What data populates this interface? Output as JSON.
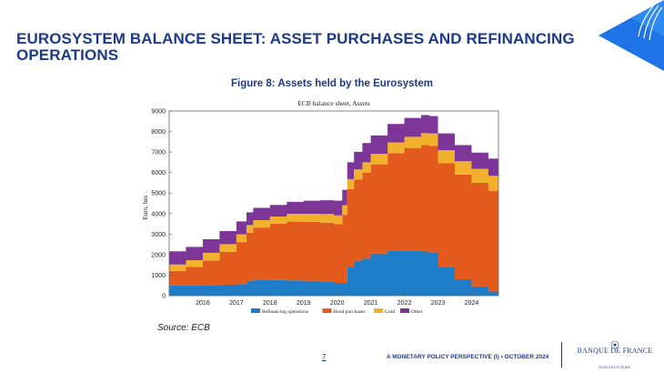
{
  "slide": {
    "title": "EUROSYSTEM BALANCE SHEET: ASSET PURCHASES AND REFINANCING OPERATIONS",
    "figure_title": "Figure 8: Assets held by the Eurosystem",
    "source": "Source: ECB",
    "page_number": "7",
    "footer_text": "A MONETARY POLICY PERSPECTIVE (I) • OCTOBER 2024",
    "logo_name": "BANQUE DE FRANCE",
    "logo_sub": "EUROSYSTÈME",
    "colors": {
      "brand_blue": "#1d3a8a",
      "corner_blue": "#1e73e6"
    }
  },
  "chart_data": {
    "type": "area",
    "stacked": true,
    "title": "ECB balance sheet, Assets",
    "xlabel": "",
    "ylabel": "Euro, bns",
    "ylim": [
      0,
      9000
    ],
    "yticks": [
      0,
      1000,
      2000,
      3000,
      4000,
      5000,
      6000,
      7000,
      8000,
      9000
    ],
    "xlim": [
      2015.0,
      2024.8
    ],
    "xticks": [
      2016,
      2017,
      2018,
      2019,
      2020,
      2021,
      2022,
      2023,
      2024
    ],
    "grid": false,
    "legend_position": "bottom",
    "x": [
      2015.0,
      2015.5,
      2016.0,
      2016.5,
      2017.0,
      2017.3,
      2017.5,
      2018.0,
      2018.5,
      2019.0,
      2019.5,
      2019.9,
      2020.15,
      2020.3,
      2020.5,
      2020.75,
      2021.0,
      2021.5,
      2022.0,
      2022.5,
      2022.75,
      2023.0,
      2023.5,
      2024.0,
      2024.5,
      2024.8
    ],
    "series": [
      {
        "name": "Refinancing operations",
        "color": "#1e7dc8",
        "values": [
          500,
          500,
          520,
          530,
          560,
          720,
          770,
          760,
          740,
          720,
          700,
          620,
          620,
          1400,
          1700,
          1800,
          2050,
          2200,
          2200,
          2150,
          2100,
          1400,
          800,
          450,
          200,
          100
        ]
      },
      {
        "name": "Bond purchases",
        "color": "#e35a1d",
        "values": [
          700,
          900,
          1200,
          1600,
          2050,
          2350,
          2550,
          2750,
          2870,
          2870,
          2860,
          2860,
          3320,
          3800,
          3950,
          4200,
          4350,
          4750,
          5000,
          5200,
          5200,
          5050,
          5100,
          5050,
          4900,
          4700
        ]
      },
      {
        "name": "Gold",
        "color": "#f2b12c",
        "values": [
          320,
          330,
          370,
          380,
          380,
          370,
          360,
          350,
          380,
          400,
          420,
          430,
          470,
          480,
          500,
          500,
          510,
          520,
          540,
          570,
          600,
          640,
          650,
          680,
          740,
          780
        ]
      },
      {
        "name": "Other",
        "color": "#7d3598",
        "values": [
          640,
          650,
          660,
          640,
          630,
          620,
          600,
          560,
          580,
          640,
          670,
          720,
          750,
          820,
          860,
          940,
          900,
          900,
          920,
          880,
          850,
          820,
          790,
          790,
          840,
          860
        ]
      }
    ]
  }
}
